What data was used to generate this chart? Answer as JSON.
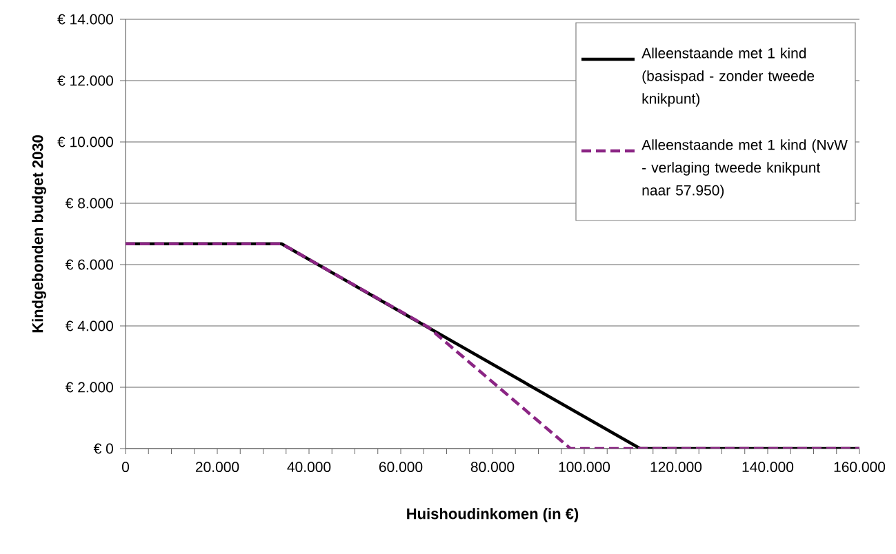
{
  "chart_data": {
    "type": "line",
    "xlabel": "Huishoudinkomen (in €)",
    "ylabel": "Kindgebonden budget 2030",
    "xlim": [
      0,
      160000
    ],
    "ylim": [
      0,
      14000
    ],
    "xticks": [
      {
        "value": 0,
        "label": "0"
      },
      {
        "value": 20000,
        "label": "20.000"
      },
      {
        "value": 40000,
        "label": "40.000"
      },
      {
        "value": 60000,
        "label": "60.000"
      },
      {
        "value": 80000,
        "label": "80.000"
      },
      {
        "value": 100000,
        "label": "100.000"
      },
      {
        "value": 120000,
        "label": "120.000"
      },
      {
        "value": 140000,
        "label": "140.000"
      },
      {
        "value": 160000,
        "label": "160.000"
      }
    ],
    "yticks": [
      {
        "value": 0,
        "label": "€ 0"
      },
      {
        "value": 2000,
        "label": "€ 2.000"
      },
      {
        "value": 4000,
        "label": "€ 4.000"
      },
      {
        "value": 6000,
        "label": "€ 6.000"
      },
      {
        "value": 8000,
        "label": "€ 8.000"
      },
      {
        "value": 10000,
        "label": "€ 10.000"
      },
      {
        "value": 12000,
        "label": "€ 12.000"
      },
      {
        "value": 14000,
        "label": "€ 14.000"
      }
    ],
    "grid": "y",
    "legend": "top right",
    "marker": "none",
    "series": [
      {
        "name": "Alleenstaande met 1 kind (basispad - zonder tweede knikpunt)",
        "color": "#000000",
        "line_style": "solid",
        "x": [
          0,
          34000,
          112200,
          160000
        ],
        "values": [
          6680,
          6680,
          0,
          0
        ]
      },
      {
        "name": "Alleenstaande met 1 kind (NvW - verlaging tweede knikpunt naar 57.950)",
        "color": "#8b2584",
        "line_style": "dashed",
        "x": [
          0,
          34000,
          65900,
          97000,
          160000
        ],
        "values": [
          6680,
          6680,
          3970,
          0,
          0
        ]
      }
    ]
  }
}
